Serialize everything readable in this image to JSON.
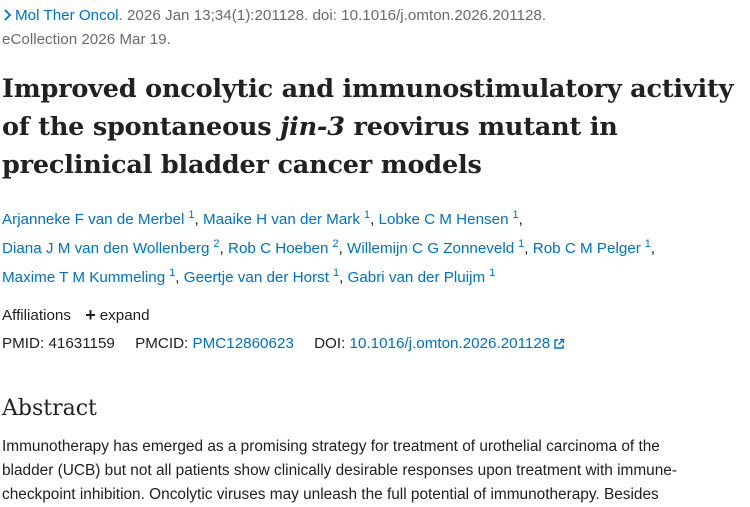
{
  "citation": {
    "journal": "Mol Ther Oncol",
    "line1_rest": ". 2026 Jan 13;34(1):201128. doi: 10.1016/j.omton.2026.201128.",
    "line2": "eCollection 2026 Mar 19."
  },
  "title": {
    "part1": "Improved oncolytic and immunostimulatory activity of the spontaneous ",
    "italic": "jin-3",
    "part2": " reovirus mutant in preclinical bladder cancer models"
  },
  "authors": [
    {
      "name": "Arjanneke F van de Merbel",
      "aff": "1"
    },
    {
      "name": "Maaike H van der Mark",
      "aff": "1"
    },
    {
      "name": "Lobke C M Hensen",
      "aff": "1"
    },
    {
      "name": "Diana J M van den Wollenberg",
      "aff": "2"
    },
    {
      "name": "Rob C Hoeben",
      "aff": "2"
    },
    {
      "name": "Willemijn C G Zonneveld",
      "aff": "1"
    },
    {
      "name": "Rob C M Pelger",
      "aff": "1"
    },
    {
      "name": "Maxime T M Kummeling",
      "aff": "1"
    },
    {
      "name": "Geertje van der Horst",
      "aff": "1"
    },
    {
      "name": "Gabri van der Pluijm",
      "aff": "1"
    }
  ],
  "affiliations": {
    "label": "Affiliations",
    "expand": "expand"
  },
  "ids": {
    "pmid_label": "PMID:",
    "pmid": "41631159",
    "pmcid_label": "PMCID:",
    "pmcid": "PMC12860623",
    "doi_label": "DOI:",
    "doi": "10.1016/j.omton.2026.201128"
  },
  "abstract": {
    "heading": "Abstract",
    "line1": "Immunotherapy has emerged as a promising strategy for treatment of urothelial carcinoma of the",
    "line2": "bladder (UCB) but not all patients show clinically desirable responses upon treatment with immune-",
    "line3": "checkpoint inhibition. Oncolytic viruses may unleash the full potential of immunotherapy. Besides"
  },
  "icons": {
    "journal_chevron": "chevron-right-icon",
    "external_link": "external-link-icon",
    "expand_plus": "plus-icon"
  },
  "colors": {
    "link": "#0071bc",
    "text": "#212121",
    "muted": "#6a6a6a"
  }
}
